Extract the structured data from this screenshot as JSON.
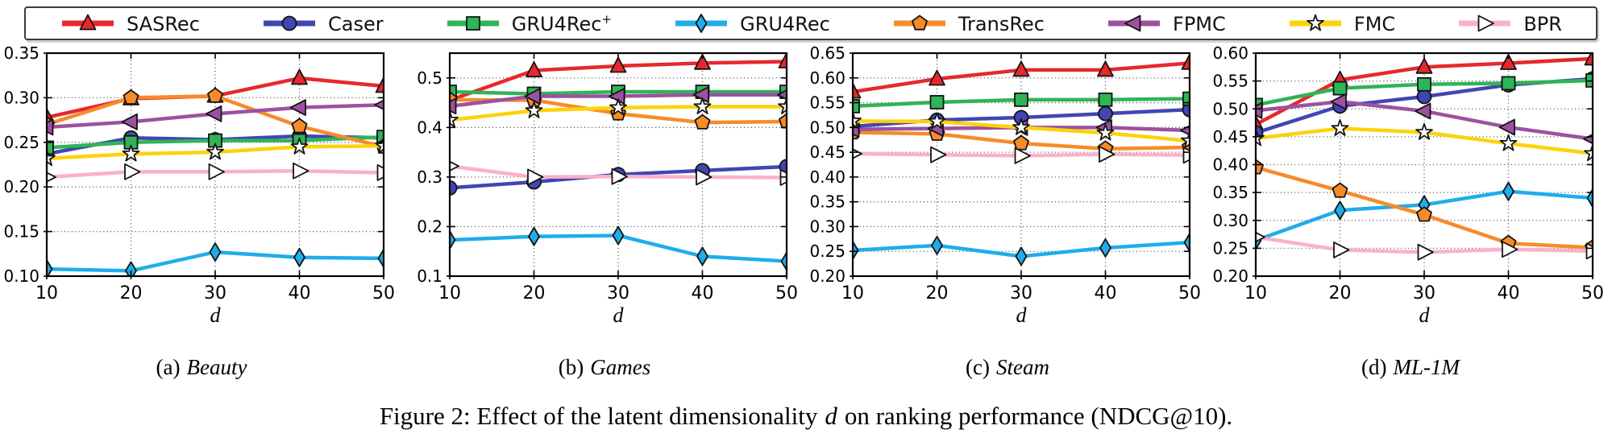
{
  "legend": {
    "items": [
      {
        "label": "SASRec",
        "sup": "",
        "color": "#e7282d",
        "marker": "triangle-up",
        "face": "self"
      },
      {
        "label": "Caser",
        "sup": "",
        "color": "#4146b2",
        "marker": "circle",
        "face": "self"
      },
      {
        "label": "GRU4Rec",
        "sup": "+",
        "color": "#2fb457",
        "marker": "square",
        "face": "self"
      },
      {
        "label": "GRU4Rec",
        "sup": "",
        "color": "#1fadea",
        "marker": "diamond",
        "face": "self"
      },
      {
        "label": "TransRec",
        "sup": "",
        "color": "#f78b29",
        "marker": "pentagon",
        "face": "self"
      },
      {
        "label": "FPMC",
        "sup": "",
        "color": "#9b51a0",
        "marker": "triangle-left",
        "face": "self"
      },
      {
        "label": "FMC",
        "sup": "",
        "color": "#fdd20a",
        "marker": "star",
        "face": "#ffffff"
      },
      {
        "label": "BPR",
        "sup": "",
        "color": "#fab0cc",
        "marker": "triangle-right",
        "face": "#ffffff"
      }
    ]
  },
  "chart_data": [
    {
      "type": "line",
      "caption_prefix": "(a)",
      "caption_name": "Beauty",
      "xlabel": "d",
      "ylabel": "",
      "grid": true,
      "x": [
        10,
        20,
        30,
        40,
        50
      ],
      "ylim": [
        0.1,
        0.35
      ],
      "y_ticks": [
        0.1,
        0.15,
        0.2,
        0.25,
        0.3,
        0.35
      ],
      "ytick_decimals": 2,
      "series": [
        {
          "name": "SASRec",
          "values": [
            0.278,
            0.299,
            0.302,
            0.322,
            0.313
          ]
        },
        {
          "name": "Caser",
          "values": [
            0.237,
            0.255,
            0.253,
            0.257,
            0.255
          ]
        },
        {
          "name": "GRU4Rec+",
          "values": [
            0.244,
            0.25,
            0.252,
            0.252,
            0.256
          ]
        },
        {
          "name": "GRU4Rec",
          "values": [
            0.108,
            0.106,
            0.127,
            0.121,
            0.12
          ]
        },
        {
          "name": "TransRec",
          "values": [
            0.27,
            0.3,
            0.302,
            0.268,
            0.245
          ]
        },
        {
          "name": "FPMC",
          "values": [
            0.267,
            0.273,
            0.282,
            0.289,
            0.292
          ]
        },
        {
          "name": "FMC",
          "values": [
            0.232,
            0.237,
            0.239,
            0.245,
            0.246
          ]
        },
        {
          "name": "BPR",
          "values": [
            0.211,
            0.217,
            0.217,
            0.218,
            0.216
          ]
        }
      ]
    },
    {
      "type": "line",
      "caption_prefix": "(b)",
      "caption_name": "Games",
      "xlabel": "d",
      "ylabel": "",
      "grid": true,
      "x": [
        10,
        20,
        30,
        40,
        50
      ],
      "ylim": [
        0.1,
        0.55
      ],
      "y_ticks": [
        0.1,
        0.2,
        0.3,
        0.4,
        0.5
      ],
      "ytick_decimals": 1,
      "series": [
        {
          "name": "SASRec",
          "values": [
            0.455,
            0.515,
            0.524,
            0.53,
            0.533
          ]
        },
        {
          "name": "Caser",
          "values": [
            0.278,
            0.29,
            0.305,
            0.313,
            0.321
          ]
        },
        {
          "name": "GRU4Rec+",
          "values": [
            0.472,
            0.468,
            0.472,
            0.472,
            0.472
          ]
        },
        {
          "name": "GRU4Rec",
          "values": [
            0.173,
            0.18,
            0.182,
            0.14,
            0.13
          ]
        },
        {
          "name": "TransRec",
          "values": [
            0.456,
            0.455,
            0.428,
            0.41,
            0.412
          ]
        },
        {
          "name": "FPMC",
          "values": [
            0.443,
            0.463,
            0.463,
            0.466,
            0.466
          ]
        },
        {
          "name": "FMC",
          "values": [
            0.415,
            0.434,
            0.44,
            0.442,
            0.442
          ]
        },
        {
          "name": "BPR",
          "values": [
            0.322,
            0.3,
            0.301,
            0.3,
            0.299
          ]
        }
      ]
    },
    {
      "type": "line",
      "caption_prefix": "(c)",
      "caption_name": "Steam",
      "xlabel": "d",
      "ylabel": "",
      "grid": true,
      "x": [
        10,
        20,
        30,
        40,
        50
      ],
      "ylim": [
        0.2,
        0.65
      ],
      "y_ticks": [
        0.2,
        0.25,
        0.3,
        0.35,
        0.4,
        0.45,
        0.5,
        0.55,
        0.6,
        0.65
      ],
      "ytick_decimals": 2,
      "series": [
        {
          "name": "SASRec",
          "values": [
            0.572,
            0.598,
            0.616,
            0.616,
            0.63
          ]
        },
        {
          "name": "Caser",
          "values": [
            0.502,
            0.515,
            0.52,
            0.528,
            0.536
          ]
        },
        {
          "name": "GRU4Rec+",
          "values": [
            0.543,
            0.551,
            0.556,
            0.556,
            0.558
          ]
        },
        {
          "name": "GRU4Rec",
          "values": [
            0.252,
            0.262,
            0.24,
            0.257,
            0.268
          ]
        },
        {
          "name": "TransRec",
          "values": [
            0.49,
            0.487,
            0.468,
            0.457,
            0.46
          ]
        },
        {
          "name": "FPMC",
          "values": [
            0.496,
            0.498,
            0.5,
            0.5,
            0.494
          ]
        },
        {
          "name": "FMC",
          "values": [
            0.513,
            0.512,
            0.5,
            0.489,
            0.473
          ]
        },
        {
          "name": "BPR",
          "values": [
            0.447,
            0.445,
            0.443,
            0.446,
            0.444
          ]
        }
      ]
    },
    {
      "type": "line",
      "caption_prefix": "(d)",
      "caption_name": "ML-1M",
      "xlabel": "d",
      "ylabel": "",
      "grid": true,
      "x": [
        10,
        20,
        30,
        40,
        50
      ],
      "ylim": [
        0.2,
        0.6
      ],
      "y_ticks": [
        0.2,
        0.25,
        0.3,
        0.35,
        0.4,
        0.45,
        0.5,
        0.55,
        0.6
      ],
      "ytick_decimals": 2,
      "series": [
        {
          "name": "SASRec",
          "values": [
            0.472,
            0.552,
            0.575,
            0.582,
            0.59
          ]
        },
        {
          "name": "Caser",
          "values": [
            0.457,
            0.505,
            0.522,
            0.543,
            0.554
          ]
        },
        {
          "name": "GRU4Rec+",
          "values": [
            0.507,
            0.537,
            0.544,
            0.546,
            0.551
          ]
        },
        {
          "name": "GRU4Rec",
          "values": [
            0.264,
            0.318,
            0.328,
            0.352,
            0.34
          ]
        },
        {
          "name": "TransRec",
          "values": [
            0.395,
            0.353,
            0.31,
            0.259,
            0.251
          ]
        },
        {
          "name": "FPMC",
          "values": [
            0.497,
            0.513,
            0.496,
            0.467,
            0.446
          ]
        },
        {
          "name": "FMC",
          "values": [
            0.447,
            0.465,
            0.458,
            0.438,
            0.42
          ]
        },
        {
          "name": "BPR",
          "values": [
            0.27,
            0.247,
            0.243,
            0.248,
            0.245
          ]
        }
      ]
    }
  ],
  "figure_caption": {
    "prefix": "Figure 2: Effect of the latent dimensionality",
    "italic": "d",
    "suffix": "on ranking performance (NDCG@10)."
  }
}
